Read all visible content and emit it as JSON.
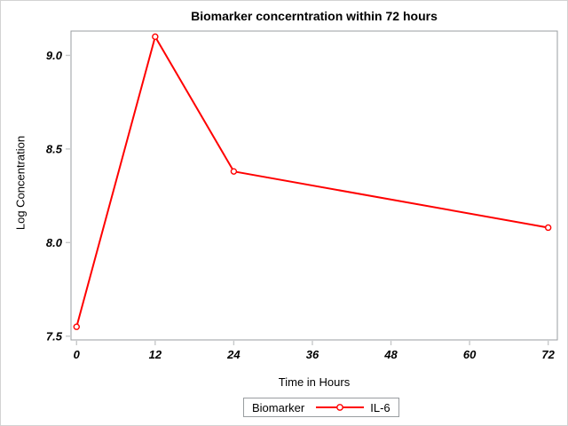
{
  "figure": {
    "title": "Biomarker concerntration within 72 hours"
  },
  "legend": {
    "title": "Biomarker",
    "series_label": "IL-6"
  },
  "colors": {
    "background": "#ffffff",
    "figure_border": "#d3d3d3",
    "axis_line": "#999da0",
    "tick_mark": "#c7c9ca",
    "text": "#000000",
    "series_red": "#ff0000",
    "marker_fill": "#ffffff"
  },
  "chart_data": {
    "type": "line",
    "title": "Biomarker concerntration within 72 hours",
    "xlabel": "Time in Hours",
    "ylabel": "Log Concentration",
    "x_ticks": [
      0,
      12,
      24,
      36,
      48,
      60,
      72
    ],
    "x_tick_labels": [
      "0",
      "12",
      "24",
      "36",
      "48",
      "60",
      "72"
    ],
    "y_ticks": [
      7.5,
      8.0,
      8.5,
      9.0
    ],
    "y_tick_labels": [
      "7.5",
      "8.0",
      "8.5",
      "9.0"
    ],
    "xlim": [
      -0.85,
      73.4
    ],
    "ylim": [
      7.48,
      9.13
    ],
    "grid": false,
    "legend_position": "bottom",
    "legend_title": "Biomarker",
    "series": [
      {
        "name": "IL-6",
        "color": "#ff0000",
        "marker": "open-circle",
        "x": [
          0,
          12,
          24,
          72
        ],
        "y": [
          7.55,
          9.1,
          8.38,
          8.08
        ]
      }
    ]
  }
}
